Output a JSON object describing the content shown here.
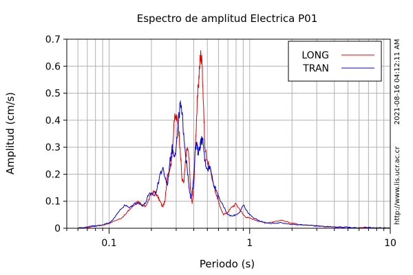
{
  "chart_data": {
    "type": "line",
    "title": "Espectro de amplitud Electrica P01",
    "xlabel": "Periodo (s)",
    "ylabel": "Amplitud (cm/s)",
    "x_scale": "log",
    "xlim": [
      0.05,
      10
    ],
    "ylim": [
      0,
      0.7
    ],
    "grid": true,
    "legend_position": "top-right",
    "xticks": [
      0.1,
      1,
      10
    ],
    "xtick_labels": [
      "0.1",
      "1",
      "10"
    ],
    "yticks": [
      0,
      0.1,
      0.2,
      0.3,
      0.4,
      0.5,
      0.6,
      0.7
    ],
    "ytick_labels": [
      "0",
      "0.1",
      "0.2",
      "0.3",
      "0.4",
      "0.5",
      "0.6",
      "0.7"
    ],
    "series": [
      {
        "name": "LONG",
        "color": "#dd0000",
        "x": [
          0.06,
          0.07,
          0.08,
          0.09,
          0.1,
          0.11,
          0.12,
          0.13,
          0.14,
          0.15,
          0.16,
          0.17,
          0.18,
          0.19,
          0.2,
          0.21,
          0.22,
          0.23,
          0.24,
          0.25,
          0.26,
          0.27,
          0.28,
          0.29,
          0.3,
          0.31,
          0.32,
          0.33,
          0.34,
          0.35,
          0.36,
          0.37,
          0.38,
          0.39,
          0.4,
          0.41,
          0.42,
          0.43,
          0.44,
          0.45,
          0.46,
          0.47,
          0.48,
          0.5,
          0.52,
          0.55,
          0.58,
          0.6,
          0.65,
          0.7,
          0.75,
          0.8,
          0.85,
          0.9,
          0.95,
          1.0,
          1.1,
          1.2,
          1.3,
          1.5,
          1.7,
          2.0,
          2.5,
          3.0,
          3.5,
          4.0,
          4.5,
          5.0,
          6.0,
          7.0,
          8.0,
          9.0,
          10.0
        ],
        "values": [
          0.0,
          0.003,
          0.008,
          0.012,
          0.018,
          0.028,
          0.035,
          0.05,
          0.07,
          0.085,
          0.1,
          0.085,
          0.08,
          0.1,
          0.13,
          0.135,
          0.12,
          0.1,
          0.08,
          0.1,
          0.2,
          0.22,
          0.26,
          0.4,
          0.41,
          0.39,
          0.3,
          0.18,
          0.17,
          0.25,
          0.3,
          0.26,
          0.14,
          0.09,
          0.15,
          0.3,
          0.42,
          0.52,
          0.6,
          0.645,
          0.6,
          0.45,
          0.3,
          0.25,
          0.22,
          0.17,
          0.12,
          0.1,
          0.05,
          0.06,
          0.08,
          0.09,
          0.07,
          0.05,
          0.04,
          0.038,
          0.03,
          0.025,
          0.02,
          0.025,
          0.03,
          0.018,
          0.012,
          0.008,
          0.005,
          0.005,
          0.004,
          0.003,
          0.002,
          0.004,
          0.002,
          0.001,
          0.0
        ]
      },
      {
        "name": "TRAN",
        "color": "#0000cc",
        "x": [
          0.06,
          0.07,
          0.08,
          0.09,
          0.1,
          0.11,
          0.12,
          0.13,
          0.14,
          0.15,
          0.16,
          0.17,
          0.18,
          0.19,
          0.2,
          0.21,
          0.22,
          0.23,
          0.24,
          0.25,
          0.26,
          0.27,
          0.28,
          0.29,
          0.3,
          0.31,
          0.32,
          0.33,
          0.34,
          0.35,
          0.36,
          0.37,
          0.38,
          0.39,
          0.4,
          0.41,
          0.42,
          0.43,
          0.44,
          0.45,
          0.46,
          0.47,
          0.48,
          0.5,
          0.52,
          0.55,
          0.58,
          0.6,
          0.65,
          0.7,
          0.75,
          0.8,
          0.85,
          0.9,
          0.95,
          1.0,
          1.1,
          1.2,
          1.3,
          1.5,
          1.7,
          2.0,
          2.5,
          3.0,
          3.5,
          4.0,
          4.5,
          5.0,
          6.0,
          7.0,
          8.0,
          9.0,
          10.0
        ],
        "values": [
          0.0,
          0.005,
          0.01,
          0.013,
          0.02,
          0.04,
          0.07,
          0.085,
          0.075,
          0.09,
          0.095,
          0.085,
          0.09,
          0.12,
          0.13,
          0.12,
          0.15,
          0.2,
          0.22,
          0.19,
          0.16,
          0.24,
          0.3,
          0.27,
          0.3,
          0.38,
          0.46,
          0.42,
          0.35,
          0.27,
          0.22,
          0.15,
          0.11,
          0.13,
          0.2,
          0.29,
          0.31,
          0.28,
          0.3,
          0.32,
          0.33,
          0.3,
          0.25,
          0.22,
          0.23,
          0.17,
          0.14,
          0.12,
          0.08,
          0.05,
          0.045,
          0.05,
          0.06,
          0.085,
          0.065,
          0.05,
          0.035,
          0.025,
          0.02,
          0.018,
          0.02,
          0.015,
          0.012,
          0.01,
          0.006,
          0.005,
          0.004,
          0.003,
          0.002,
          0.003,
          0.002,
          0.001,
          0.0
        ]
      }
    ]
  },
  "side_labels": {
    "timestamp": "2021-08-16 04:12:11 AM",
    "url": "http://www.lis.ucr.ac.cr"
  }
}
